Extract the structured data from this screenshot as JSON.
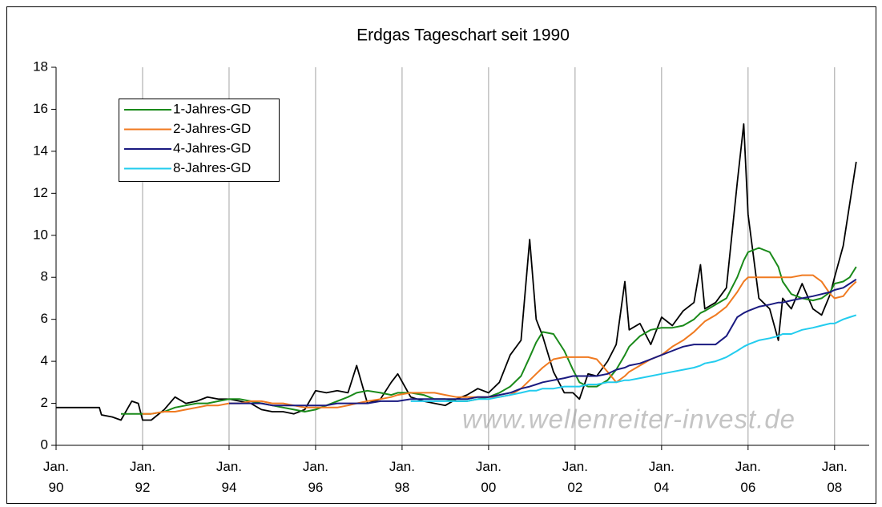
{
  "chart_data": {
    "type": "line",
    "title": "Erdgas Tageschart seit 1990",
    "watermark": "www.wellenreiter-invest.de",
    "x": [
      1990.0,
      1991.0,
      1991.05,
      1991.3,
      1991.5,
      1991.75,
      1991.9,
      1992.0,
      1992.2,
      1992.5,
      1992.75,
      1993.0,
      1993.25,
      1993.5,
      1993.75,
      1994.0,
      1994.25,
      1994.5,
      1994.75,
      1995.0,
      1995.25,
      1995.5,
      1995.75,
      1996.0,
      1996.25,
      1996.5,
      1996.75,
      1996.95,
      1997.2,
      1997.5,
      1997.75,
      1997.9,
      1998.2,
      1998.5,
      1998.75,
      1999.0,
      1999.25,
      1999.5,
      1999.75,
      2000.0,
      2000.25,
      2000.5,
      2000.75,
      2000.95,
      2001.1,
      2001.25,
      2001.5,
      2001.75,
      2001.95,
      2002.1,
      2002.3,
      2002.5,
      2002.75,
      2002.95,
      2003.15,
      2003.25,
      2003.5,
      2003.75,
      2004.0,
      2004.25,
      2004.5,
      2004.75,
      2004.9,
      2005.0,
      2005.25,
      2005.5,
      2005.75,
      2005.9,
      2006.0,
      2006.25,
      2006.5,
      2006.7,
      2006.8,
      2007.0,
      2007.25,
      2007.5,
      2007.7,
      2007.9,
      2008.0,
      2008.2,
      2008.35,
      2008.5
    ],
    "series": [
      {
        "color": "#000000",
        "values": [
          1.8,
          1.8,
          1.45,
          1.35,
          1.2,
          2.1,
          2.0,
          1.2,
          1.2,
          1.7,
          2.3,
          2.0,
          2.1,
          2.3,
          2.2,
          2.2,
          2.1,
          2.0,
          1.7,
          1.6,
          1.6,
          1.5,
          1.7,
          2.6,
          2.5,
          2.6,
          2.5,
          3.8,
          2.0,
          2.2,
          3.0,
          3.4,
          2.3,
          2.1,
          2.0,
          1.9,
          2.2,
          2.4,
          2.7,
          2.5,
          3.0,
          4.3,
          5.0,
          9.8,
          6.0,
          5.2,
          3.5,
          2.5,
          2.5,
          2.2,
          3.4,
          3.3,
          4.0,
          4.8,
          7.8,
          5.5,
          5.8,
          4.8,
          6.1,
          5.7,
          6.4,
          6.8,
          8.6,
          6.5,
          6.8,
          7.5,
          12.5,
          15.3,
          11.0,
          7.0,
          6.5,
          5.0,
          7.0,
          6.5,
          7.7,
          6.5,
          6.2,
          7.2,
          8.0,
          9.5,
          11.5,
          13.5
        ]
      },
      {
        "name": "1-Jahres-GD",
        "color": "#1a8a1a",
        "values": [
          null,
          null,
          null,
          null,
          1.5,
          1.5,
          1.5,
          1.5,
          1.5,
          1.6,
          1.8,
          1.9,
          2.0,
          2.0,
          2.1,
          2.2,
          2.2,
          2.1,
          2.0,
          1.9,
          1.8,
          1.7,
          1.6,
          1.7,
          1.9,
          2.1,
          2.3,
          2.5,
          2.6,
          2.5,
          2.4,
          2.5,
          2.5,
          2.4,
          2.2,
          2.2,
          2.1,
          2.1,
          2.2,
          2.3,
          2.5,
          2.8,
          3.3,
          4.2,
          4.9,
          5.4,
          5.3,
          4.5,
          3.6,
          3.0,
          2.8,
          2.8,
          3.1,
          3.6,
          4.3,
          4.7,
          5.2,
          5.5,
          5.6,
          5.6,
          5.7,
          6.0,
          6.3,
          6.4,
          6.7,
          7.0,
          8.0,
          8.8,
          9.2,
          9.4,
          9.2,
          8.5,
          7.8,
          7.2,
          7.0,
          6.9,
          7.0,
          7.3,
          7.7,
          7.8,
          8.0,
          8.5
        ]
      },
      {
        "name": "2-Jahres-GD",
        "color": "#f07a20",
        "values": [
          null,
          null,
          null,
          null,
          null,
          null,
          null,
          1.5,
          1.5,
          1.6,
          1.6,
          1.7,
          1.8,
          1.9,
          1.9,
          2.0,
          2.0,
          2.1,
          2.1,
          2.0,
          2.0,
          1.9,
          1.8,
          1.8,
          1.8,
          1.8,
          1.9,
          2.0,
          2.1,
          2.2,
          2.3,
          2.4,
          2.5,
          2.5,
          2.5,
          2.4,
          2.3,
          2.3,
          2.3,
          2.3,
          2.3,
          2.4,
          2.7,
          3.1,
          3.4,
          3.7,
          4.1,
          4.2,
          4.2,
          4.2,
          4.2,
          4.1,
          3.5,
          3.0,
          3.3,
          3.5,
          3.8,
          4.1,
          4.3,
          4.7,
          5.0,
          5.4,
          5.7,
          5.9,
          6.2,
          6.6,
          7.3,
          7.8,
          8.0,
          8.0,
          8.0,
          8.0,
          8.0,
          8.0,
          8.1,
          8.1,
          7.8,
          7.2,
          7.0,
          7.1,
          7.5,
          7.8
        ]
      },
      {
        "name": "4-Jahres-GD",
        "color": "#1a1a80",
        "values": [
          null,
          null,
          null,
          null,
          null,
          null,
          null,
          null,
          null,
          null,
          null,
          null,
          null,
          null,
          null,
          2.0,
          2.0,
          2.0,
          2.0,
          1.9,
          1.9,
          1.9,
          1.9,
          1.9,
          1.9,
          2.0,
          2.0,
          2.0,
          2.0,
          2.1,
          2.1,
          2.1,
          2.2,
          2.2,
          2.2,
          2.2,
          2.2,
          2.2,
          2.3,
          2.3,
          2.4,
          2.5,
          2.7,
          2.8,
          2.9,
          3.0,
          3.1,
          3.2,
          3.3,
          3.3,
          3.3,
          3.3,
          3.4,
          3.6,
          3.7,
          3.8,
          3.9,
          4.1,
          4.3,
          4.5,
          4.7,
          4.8,
          4.8,
          4.8,
          4.8,
          5.2,
          6.1,
          6.3,
          6.4,
          6.6,
          6.7,
          6.8,
          6.8,
          6.9,
          7.0,
          7.1,
          7.2,
          7.3,
          7.4,
          7.5,
          7.7,
          7.9
        ]
      },
      {
        "name": "8-Jahres-GD",
        "color": "#22ccee",
        "values": [
          null,
          null,
          null,
          null,
          null,
          null,
          null,
          null,
          null,
          null,
          null,
          null,
          null,
          null,
          null,
          null,
          null,
          null,
          null,
          null,
          null,
          null,
          null,
          null,
          null,
          null,
          null,
          null,
          null,
          null,
          null,
          null,
          2.1,
          2.1,
          2.1,
          2.1,
          2.1,
          2.1,
          2.2,
          2.2,
          2.3,
          2.4,
          2.5,
          2.6,
          2.6,
          2.7,
          2.7,
          2.8,
          2.8,
          2.8,
          2.9,
          2.9,
          3.0,
          3.0,
          3.1,
          3.1,
          3.2,
          3.3,
          3.4,
          3.5,
          3.6,
          3.7,
          3.8,
          3.9,
          4.0,
          4.2,
          4.5,
          4.7,
          4.8,
          5.0,
          5.1,
          5.2,
          5.3,
          5.3,
          5.5,
          5.6,
          5.7,
          5.8,
          5.8,
          6.0,
          6.1,
          6.2
        ]
      }
    ],
    "xlim": [
      1990,
      2008.8
    ],
    "xticks": [
      {
        "value": 1990,
        "label": "Jan. 90"
      },
      {
        "value": 1992,
        "label": "Jan. 92"
      },
      {
        "value": 1994,
        "label": "Jan. 94"
      },
      {
        "value": 1996,
        "label": "Jan. 96"
      },
      {
        "value": 1998,
        "label": "Jan. 98"
      },
      {
        "value": 2000,
        "label": "Jan. 00"
      },
      {
        "value": 2002,
        "label": "Jan. 02"
      },
      {
        "value": 2004,
        "label": "Jan. 04"
      },
      {
        "value": 2006,
        "label": "Jan. 06"
      },
      {
        "value": 2008,
        "label": "Jan. 08"
      }
    ],
    "ylim": [
      0,
      18
    ],
    "yticks": [
      0,
      2,
      4,
      6,
      8,
      10,
      12,
      14,
      16,
      18
    ],
    "xgrid": true,
    "legend": "upper-left"
  }
}
